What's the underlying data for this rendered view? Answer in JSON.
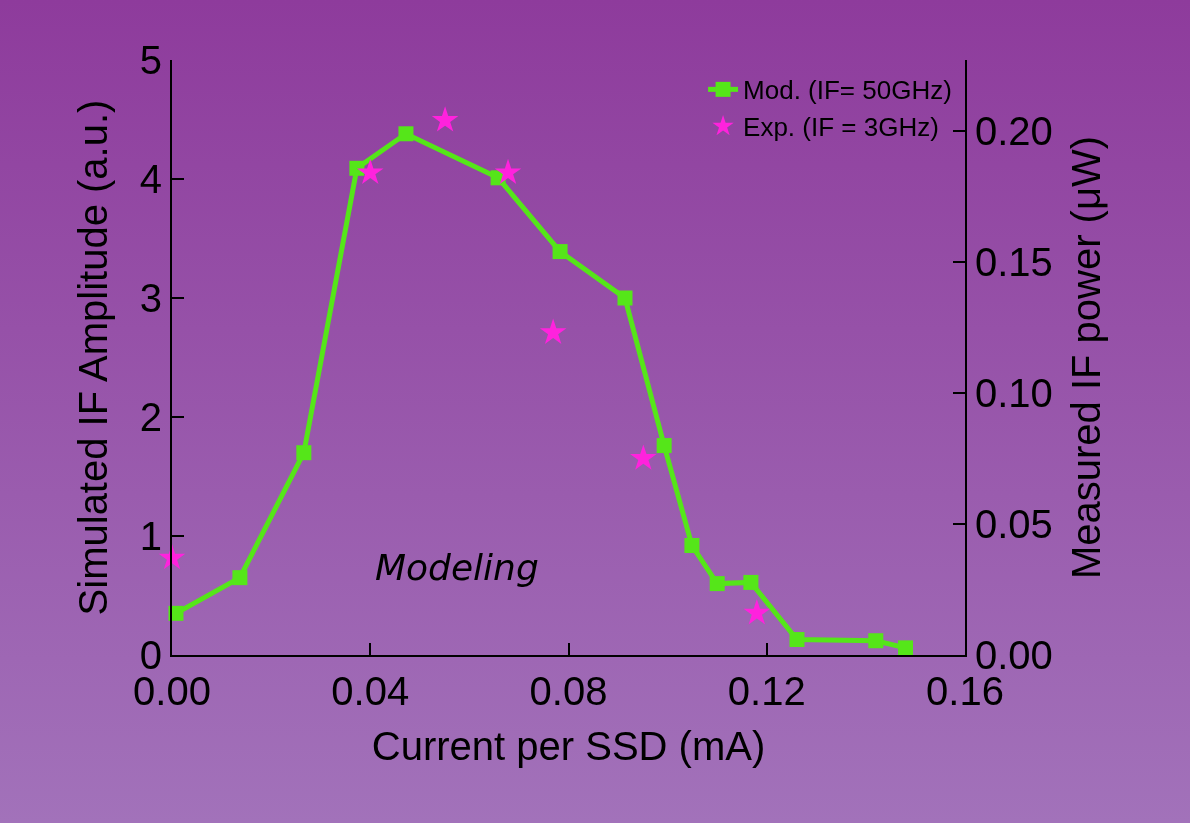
{
  "chart_data": {
    "type": "line",
    "xlabel": "Current per SSD (mA)",
    "ylabel": "Simulated IF Amplitude (a.u.)",
    "y2label": "Measured IF power (μW)",
    "xlim": [
      0,
      0.16
    ],
    "xticks": [
      {
        "value": 0,
        "label": "0.00"
      },
      {
        "value": 0.04,
        "label": "0.04"
      },
      {
        "value": 0.08,
        "label": "0.08"
      },
      {
        "value": 0.12,
        "label": "0.12"
      },
      {
        "value": 0.16,
        "label": "0.16"
      }
    ],
    "ylim": [
      0,
      5
    ],
    "yticks": [
      0,
      1,
      2,
      3,
      4,
      5
    ],
    "y2lim": [
      0,
      0.227
    ],
    "y2ticks": [
      {
        "value": 0,
        "label": "0.00"
      },
      {
        "value": 0.05,
        "label": "0.05"
      },
      {
        "value": 0.1,
        "label": "0.10"
      },
      {
        "value": 0.15,
        "label": "0.15"
      },
      {
        "value": 0.2,
        "label": "0.20"
      }
    ],
    "series": [
      {
        "name": "Mod. (IF= 50GHz)",
        "color": "#55e619",
        "marker": "square",
        "x": [
          0.0008,
          0.0137,
          0.0266,
          0.0373,
          0.0472,
          0.0658,
          0.0783,
          0.0914,
          0.0993,
          0.1049,
          0.11,
          0.1168,
          0.1261,
          0.142,
          0.148
        ],
        "values": [
          0.35,
          0.65,
          1.7,
          4.09,
          4.38,
          4.01,
          3.39,
          3.0,
          1.76,
          0.92,
          0.6,
          0.61,
          0.13,
          0.12,
          0.06
        ]
      },
      {
        "name": "Exp. (IF = 3GHz)",
        "type": "scatter",
        "axis": "y2",
        "color": "#ff22dd",
        "marker": "star",
        "x": [
          0,
          0.04,
          0.0551,
          0.0678,
          0.0769,
          0.0951,
          0.118
        ],
        "values": [
          0.037,
          0.184,
          0.204,
          0.184,
          0.123,
          0.075,
          0.016
        ]
      }
    ],
    "legend": "top right",
    "grid": false,
    "annotations": [
      "Modeling"
    ]
  }
}
